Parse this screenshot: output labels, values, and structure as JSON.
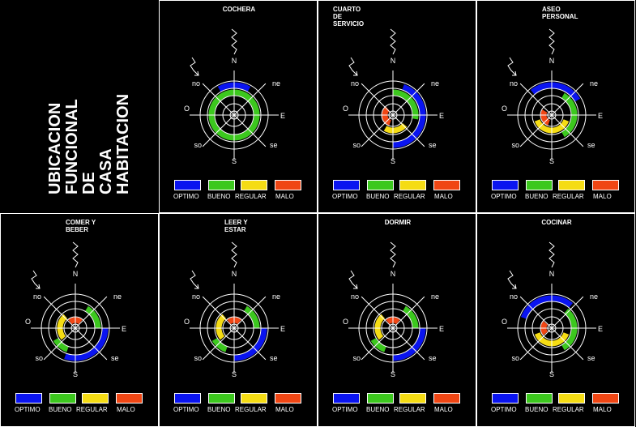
{
  "title_lines": [
    "UBICACION",
    "FUNCIONAL",
    "DE",
    "CASA",
    "HABITACION"
  ],
  "compass": {
    "n": "N",
    "ne": "ne",
    "e": "E",
    "se": "se",
    "s": "S",
    "so": "so",
    "o": "O",
    "no": "no"
  },
  "legend": [
    {
      "label": "OPTIMO",
      "color": "#0a14f0"
    },
    {
      "label": "BUENO",
      "color": "#3cc81e"
    },
    {
      "label": "REGULAR",
      "color": "#f5dc14"
    },
    {
      "label": "MALO",
      "color": "#f04614"
    }
  ],
  "panels": [
    {
      "id": "cochera",
      "title": "COCHERA",
      "arcs": [
        {
          "level": "optimo",
          "ring": 4,
          "from": -30,
          "to": 30
        },
        {
          "level": "bueno",
          "ring": 3,
          "from": 0,
          "to": 360
        }
      ]
    },
    {
      "id": "cuarto-servicio",
      "title": "CUARTO\nDE\nSERVICIO",
      "arcs": [
        {
          "level": "optimo",
          "ring": 4,
          "from": 20,
          "to": 180
        },
        {
          "level": "bueno",
          "ring": 3,
          "from": 0,
          "to": 100
        },
        {
          "level": "regular",
          "ring": 2,
          "from": 130,
          "to": 210
        },
        {
          "level": "malo",
          "ring": 1,
          "from": 200,
          "to": 320
        }
      ]
    },
    {
      "id": "aseo-personal",
      "title": "ASEO\nPERSONAL",
      "arcs": [
        {
          "level": "optimo",
          "ring": 4,
          "from": -40,
          "to": 60
        },
        {
          "level": "bueno",
          "ring": 3,
          "from": 30,
          "to": 150
        },
        {
          "level": "regular",
          "ring": 2,
          "from": 110,
          "to": 250
        },
        {
          "level": "malo",
          "ring": 1,
          "from": 200,
          "to": 300
        }
      ]
    },
    {
      "id": "comer-beber",
      "title": "COMER Y\nBEBER",
      "arcs": [
        {
          "level": "optimo",
          "ring": 4,
          "from": 90,
          "to": 200
        },
        {
          "level": "bueno",
          "ring": 3,
          "from": 30,
          "to": 90
        },
        {
          "level": "bueno",
          "ring": 3,
          "from": 200,
          "to": 240
        },
        {
          "level": "regular",
          "ring": 2,
          "from": 230,
          "to": 320
        },
        {
          "level": "malo",
          "ring": 1,
          "from": -40,
          "to": 40
        }
      ]
    },
    {
      "id": "leer-estar",
      "title": "LEER Y\nESTAR",
      "arcs": [
        {
          "level": "optimo",
          "ring": 4,
          "from": 90,
          "to": 180
        },
        {
          "level": "bueno",
          "ring": 3,
          "from": 30,
          "to": 90
        },
        {
          "level": "bueno",
          "ring": 3,
          "from": 200,
          "to": 240
        },
        {
          "level": "regular",
          "ring": 2,
          "from": 230,
          "to": 320
        },
        {
          "level": "malo",
          "ring": 1,
          "from": -40,
          "to": 40
        }
      ]
    },
    {
      "id": "dormir",
      "title": "DORMIR",
      "arcs": [
        {
          "level": "optimo",
          "ring": 4,
          "from": 90,
          "to": 180
        },
        {
          "level": "bueno",
          "ring": 3,
          "from": 30,
          "to": 90
        },
        {
          "level": "bueno",
          "ring": 3,
          "from": 200,
          "to": 240
        },
        {
          "level": "regular",
          "ring": 2,
          "from": 230,
          "to": 320
        },
        {
          "level": "malo",
          "ring": 1,
          "from": -40,
          "to": 40
        }
      ]
    },
    {
      "id": "cocinar",
      "title": "COCINAR",
      "arcs": [
        {
          "level": "optimo",
          "ring": 4,
          "from": -70,
          "to": 40
        },
        {
          "level": "bueno",
          "ring": 3,
          "from": 40,
          "to": 150
        },
        {
          "level": "regular",
          "ring": 2,
          "from": 110,
          "to": 250
        },
        {
          "level": "malo",
          "ring": 1,
          "from": 230,
          "to": 310
        }
      ]
    }
  ]
}
